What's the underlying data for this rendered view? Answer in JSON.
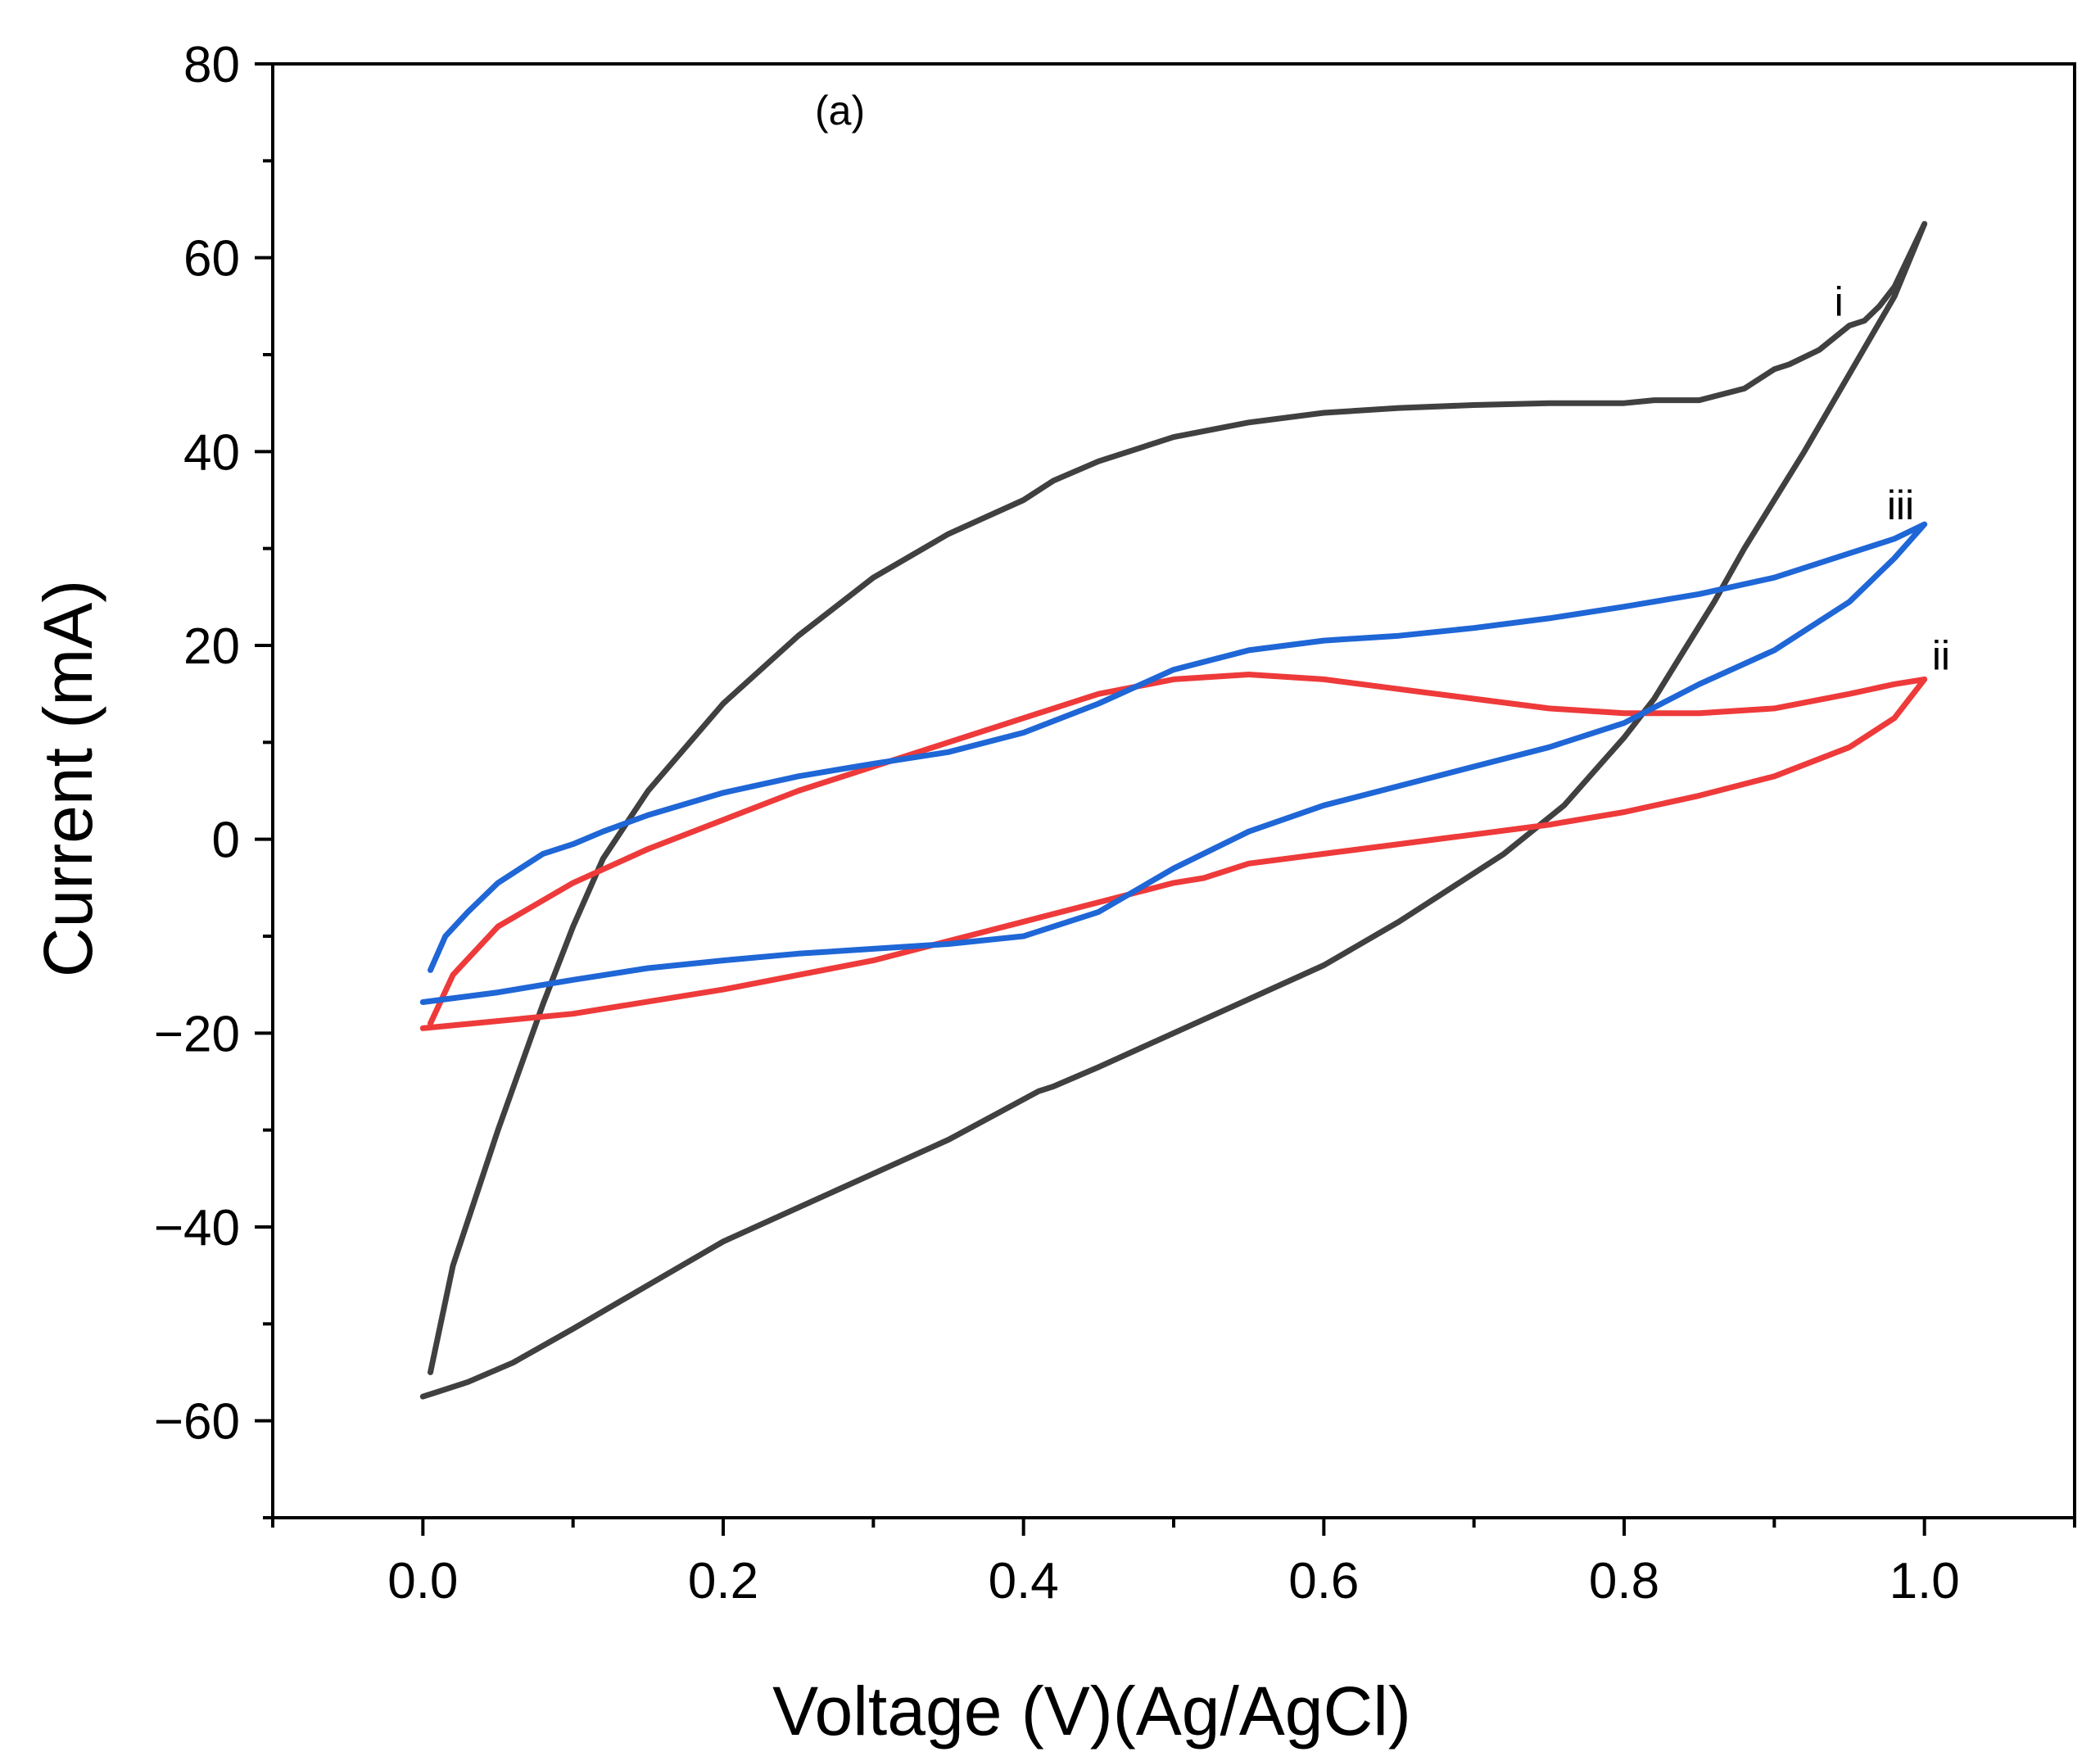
{
  "chart_data": {
    "type": "line",
    "title": "",
    "panel_label": "(a)",
    "xlabel": "Voltage (V)(Ag/AgCl)",
    "ylabel": "Current (mA)",
    "xlim": [
      -0.1,
      1.1
    ],
    "ylim": [
      -70,
      80
    ],
    "xticks": [
      0.0,
      0.2,
      0.4,
      0.6,
      0.8,
      1.0
    ],
    "xtick_labels": [
      "0.0",
      "0.2",
      "0.4",
      "0.6",
      "0.8",
      "1.0"
    ],
    "yticks": [
      80,
      60,
      40,
      20,
      0,
      -20,
      -40,
      -60
    ],
    "ytick_labels": [
      "80",
      "60",
      "40",
      "20",
      "0",
      "−20",
      "−40",
      "−60"
    ],
    "grid": false,
    "series": [
      {
        "name": "i",
        "label": "i",
        "color": "#404040",
        "label_at": [
          0.94,
          54
        ],
        "x": [
          0.005,
          0.02,
          0.05,
          0.08,
          0.1,
          0.12,
          0.15,
          0.2,
          0.25,
          0.3,
          0.35,
          0.4,
          0.42,
          0.45,
          0.5,
          0.55,
          0.6,
          0.65,
          0.7,
          0.75,
          0.8,
          0.82,
          0.85,
          0.88,
          0.9,
          0.91,
          0.93,
          0.95,
          0.96,
          0.97,
          0.98,
          1.0,
          0.98,
          0.95,
          0.92,
          0.9,
          0.88,
          0.86,
          0.84,
          0.82,
          0.8,
          0.78,
          0.76,
          0.74,
          0.72,
          0.7,
          0.65,
          0.6,
          0.55,
          0.5,
          0.45,
          0.42,
          0.41,
          0.38,
          0.35,
          0.3,
          0.25,
          0.2,
          0.15,
          0.1,
          0.06,
          0.03,
          0.01,
          0.0
        ],
        "y": [
          -55,
          -44,
          -30,
          -17,
          -9,
          -2,
          5,
          14,
          21,
          27,
          31.5,
          35,
          37,
          39,
          41.5,
          43,
          44,
          44.5,
          44.8,
          45,
          45,
          45.3,
          45.3,
          46.5,
          48.5,
          49,
          50.5,
          53,
          53.5,
          55,
          57,
          63.5,
          56,
          48,
          40,
          35,
          30,
          24.5,
          19.5,
          14.5,
          10.5,
          7,
          3.5,
          1,
          -1.5,
          -3.5,
          -8.5,
          -13,
          -16.5,
          -20,
          -23.5,
          -25.5,
          -26,
          -28.5,
          -31,
          -34.5,
          -38,
          -41.5,
          -46,
          -50.5,
          -54,
          -56,
          -57,
          -57.5
        ]
      },
      {
        "name": "ii",
        "label": "ii",
        "color": "#ee3a3a",
        "label_at": [
          1.005,
          17.5
        ],
        "x": [
          0.0,
          0.1,
          0.2,
          0.25,
          0.3,
          0.35,
          0.4,
          0.45,
          0.5,
          0.52,
          0.55,
          0.6,
          0.65,
          0.7,
          0.75,
          0.8,
          0.85,
          0.9,
          0.95,
          0.98,
          1.0,
          0.98,
          0.95,
          0.9,
          0.85,
          0.8,
          0.75,
          0.7,
          0.65,
          0.6,
          0.55,
          0.5,
          0.45,
          0.4,
          0.35,
          0.3,
          0.25,
          0.2,
          0.15,
          0.1,
          0.05,
          0.02,
          0.005,
          0.005,
          0.02,
          0.05,
          0.1,
          0.15,
          0.2,
          0.25,
          0.3,
          0.35,
          0.4,
          0.45,
          0.5,
          0.55,
          0.6,
          0.65,
          0.7,
          0.75,
          0.8,
          0.85,
          0.9,
          0.95,
          0.98,
          1.0
        ],
        "y": [
          -19.5,
          -18,
          -15.5,
          -14,
          -12.5,
          -10.5,
          -8.5,
          -6.5,
          -4.5,
          -4,
          -2.5,
          -1.5,
          -0.5,
          0.5,
          1.5,
          2.8,
          4.5,
          6.5,
          9.5,
          12.5,
          16.5,
          16,
          15,
          13.5,
          13,
          13,
          13.5,
          14.5,
          15.5,
          16.5,
          17,
          16.5,
          15,
          12.5,
          10,
          7.5,
          5,
          2,
          -1,
          -4.5,
          -9,
          -14,
          -19,
          -19,
          -14,
          -9,
          -4.5,
          -1,
          2,
          5,
          7.5,
          10,
          12.5,
          15,
          16.5,
          17,
          16.5,
          15.5,
          14.5,
          13.5,
          13,
          13,
          13.5,
          15,
          16,
          16.5
        ]
      },
      {
        "name": "iii",
        "label": "iii",
        "color": "#1f66d6",
        "label_at": [
          0.975,
          33
        ],
        "x": [
          0.005,
          0.015,
          0.03,
          0.05,
          0.08,
          0.1,
          0.12,
          0.15,
          0.2,
          0.25,
          0.3,
          0.35,
          0.4,
          0.45,
          0.5,
          0.55,
          0.6,
          0.65,
          0.7,
          0.75,
          0.8,
          0.85,
          0.9,
          0.95,
          0.98,
          1.0,
          0.98,
          0.95,
          0.9,
          0.85,
          0.8,
          0.75,
          0.7,
          0.65,
          0.6,
          0.55,
          0.5,
          0.45,
          0.4,
          0.35,
          0.3,
          0.25,
          0.2,
          0.15,
          0.1,
          0.05,
          0.0
        ],
        "y": [
          -13.5,
          -10,
          -7.5,
          -4.5,
          -1.5,
          -0.5,
          0.8,
          2.5,
          4.8,
          6.5,
          7.8,
          9,
          11,
          14,
          17.5,
          19.5,
          20.5,
          21,
          21.8,
          22.8,
          24,
          25.3,
          27,
          29.5,
          31,
          32.5,
          29,
          24.5,
          19.5,
          16,
          12,
          9.5,
          7.5,
          5.5,
          3.5,
          0.8,
          -3,
          -7.5,
          -10,
          -10.8,
          -11.3,
          -11.8,
          -12.5,
          -13.3,
          -14.5,
          -15.8,
          -16.8
        ]
      }
    ]
  }
}
